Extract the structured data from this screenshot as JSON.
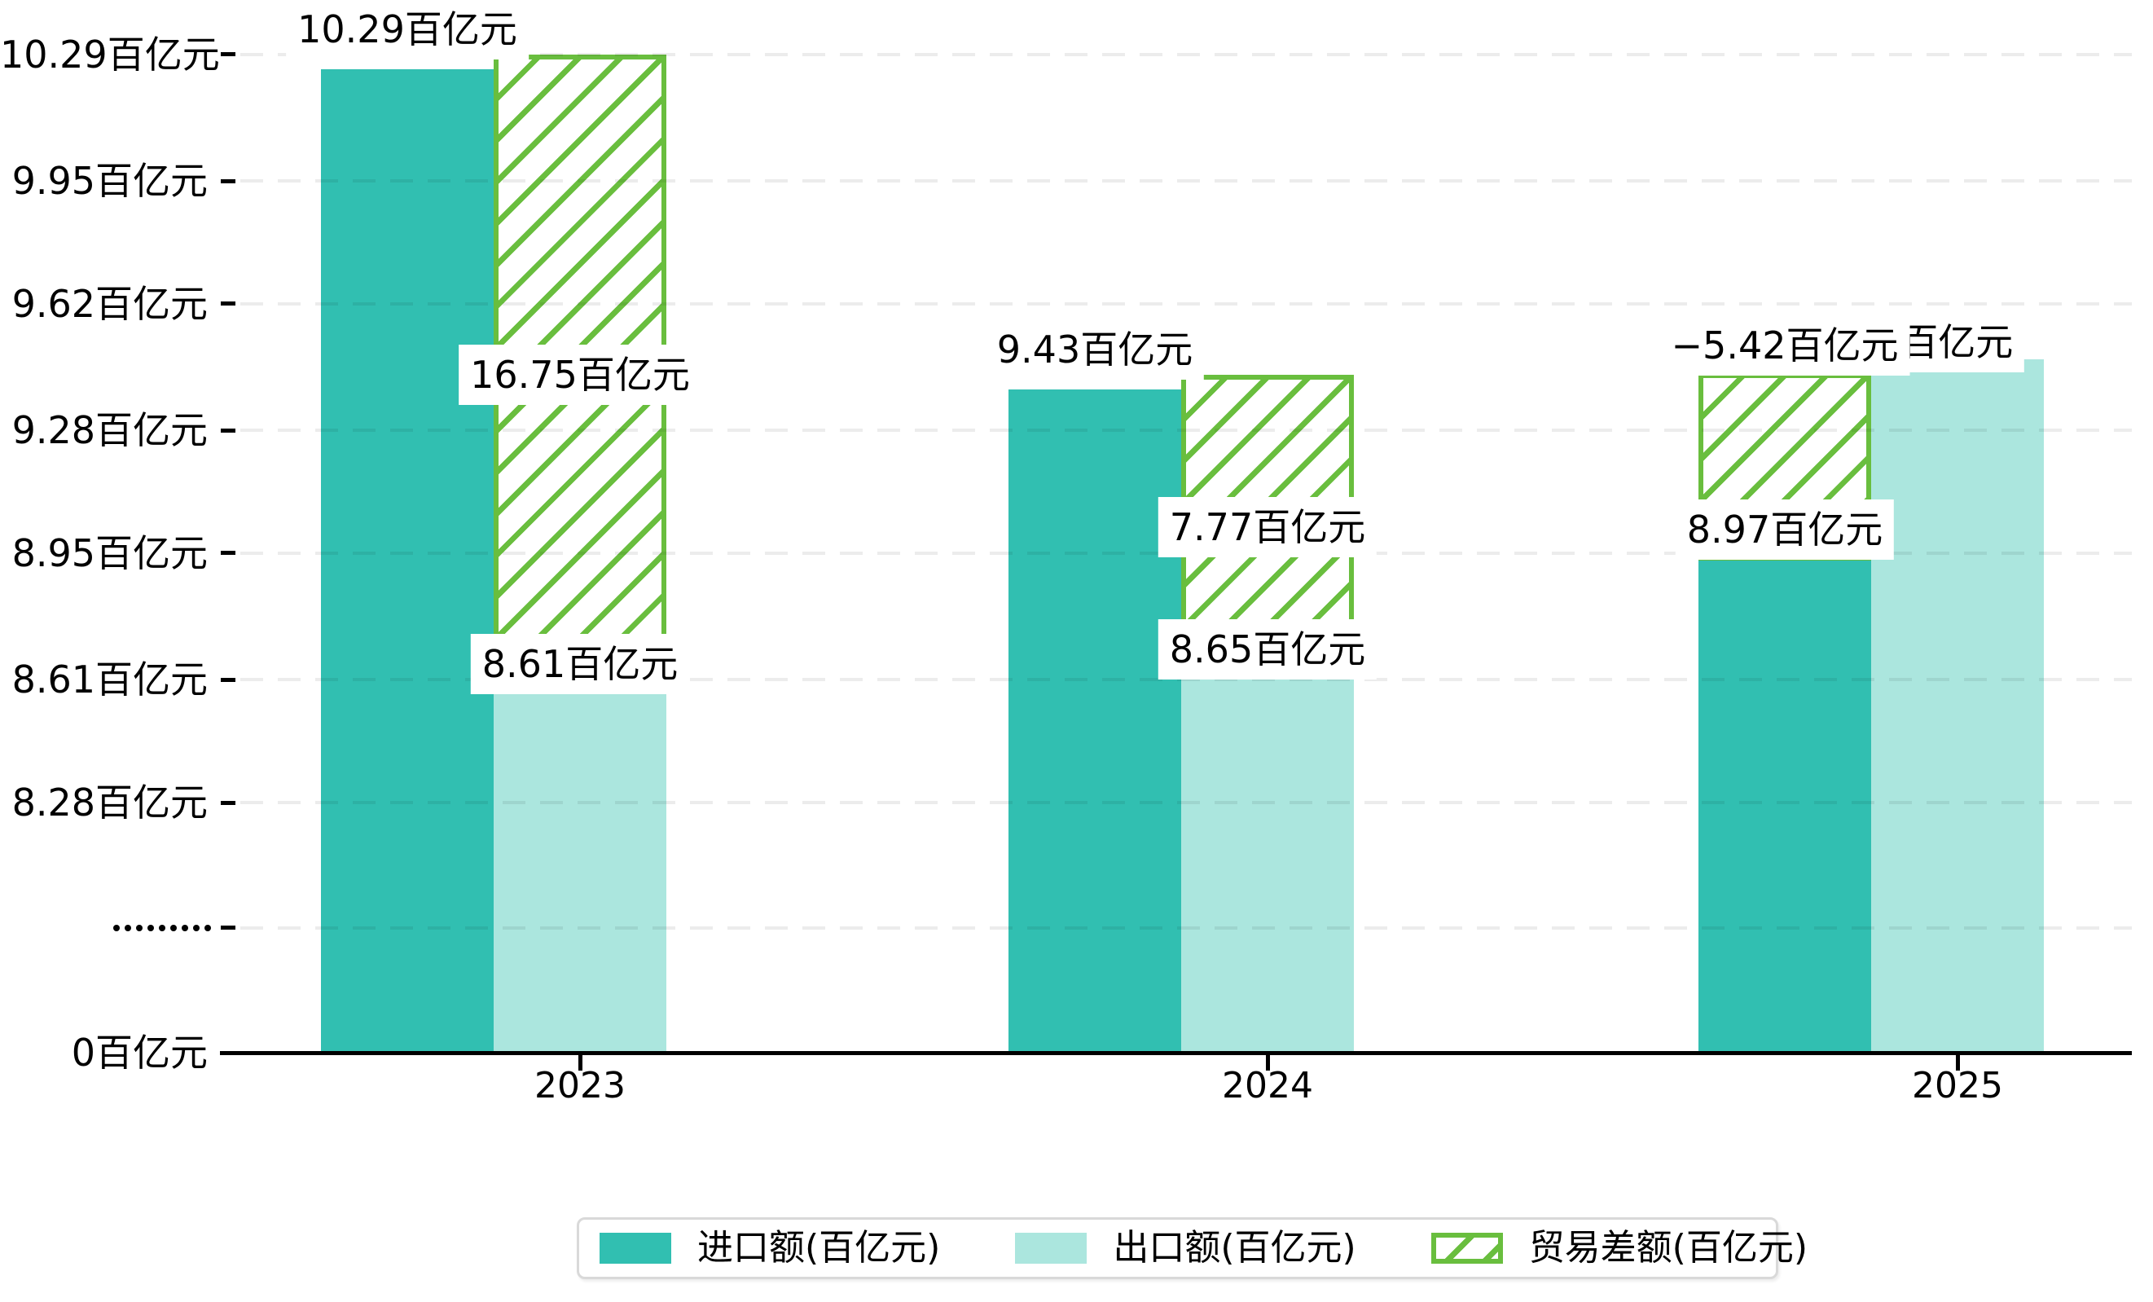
{
  "chart_data": {
    "type": "bar",
    "title": "",
    "unit": "百亿元",
    "categories": [
      "2023",
      "2024",
      "2025"
    ],
    "series": [
      {
        "name": "进口额(百亿元)",
        "color": "#31bfb1",
        "style": "solid",
        "values": [
          10.29,
          9.43,
          8.97
        ],
        "data_labels": [
          "10.29百亿元",
          "9.43百亿元",
          "8.97百亿元"
        ]
      },
      {
        "name": "出口额(百亿元)",
        "color": "#abe6de",
        "style": "solid",
        "values": [
          8.61,
          8.65,
          9.51
        ],
        "data_labels": [
          "8.61百亿元",
          "8.65百亿元",
          "9.51百亿元"
        ]
      },
      {
        "name": "贸易差额(百亿元)",
        "color": "#69be3e",
        "style": "hatched-outline",
        "values": [
          16.75,
          7.77,
          -5.42
        ],
        "data_labels": [
          "16.75百亿元",
          "7.77百亿元",
          "−5.42百亿元"
        ]
      }
    ],
    "y_axis": {
      "broken_axis": true,
      "break_marker": "·········",
      "ticks": [
        {
          "label": "10.29百亿元",
          "value": 10.29
        },
        {
          "label": "9.95百亿元",
          "value": 9.95
        },
        {
          "label": "9.62百亿元",
          "value": 9.62
        },
        {
          "label": "9.28百亿元",
          "value": 9.28
        },
        {
          "label": "8.95百亿元",
          "value": 8.95
        },
        {
          "label": "8.61百亿元",
          "value": 8.61
        },
        {
          "label": "8.28百亿元",
          "value": 8.28
        },
        {
          "label": "·········",
          "value": null
        },
        {
          "label": "0百亿元",
          "value": 0
        }
      ]
    },
    "legend_position": "bottom",
    "grid": "dashed-horizontal"
  }
}
